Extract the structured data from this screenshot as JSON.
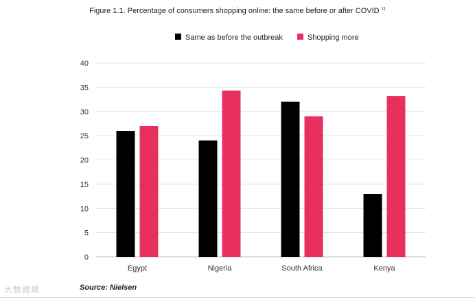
{
  "figure": {
    "title": "Figure 1.1. Percentage of consumers shopping online: the same before or after COVID",
    "title_superscript": "11",
    "source": "Source: Nielsen",
    "watermark": "大数跨境"
  },
  "colors": {
    "series_same": "#000000",
    "series_more": "#e8305e",
    "grid": "#e2e2e2",
    "axis_text": "#333333"
  },
  "chart_data": {
    "type": "bar",
    "title": "Figure 1.1. Percentage of consumers shopping online: the same before or after COVID",
    "categories": [
      "Egypt",
      "Nigeria",
      "South Africa",
      "Kenya"
    ],
    "series": [
      {
        "name": "Same as before the outbreak",
        "values": [
          26,
          24,
          32,
          13
        ]
      },
      {
        "name": "Shopping more",
        "values": [
          27,
          34.3,
          29,
          33.2
        ]
      }
    ],
    "xlabel": "",
    "ylabel": "",
    "ylim": [
      0,
      40
    ],
    "yticks": [
      0,
      5,
      10,
      15,
      20,
      25,
      30,
      35,
      40
    ],
    "grid": true,
    "legend_position": "top"
  }
}
